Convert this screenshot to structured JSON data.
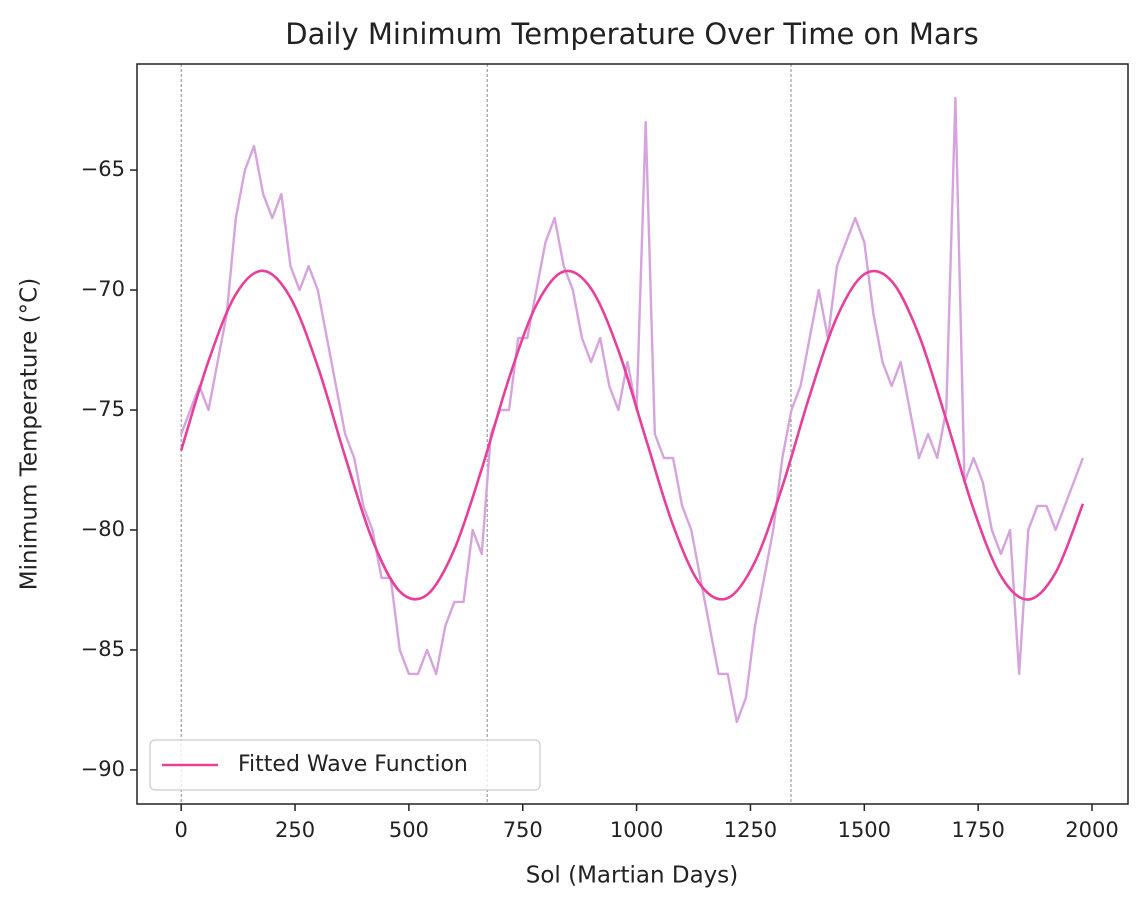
{
  "chart_data": {
    "type": "line",
    "title": "Daily Minimum Temperature Over Time on Mars",
    "xlabel": "Sol (Martian Days)",
    "ylabel": "Minimum Temperature (°C)",
    "xlim": [
      -97,
      2079
    ],
    "ylim": [
      -91.42,
      -60.58
    ],
    "xticks": [
      0,
      250,
      500,
      750,
      1000,
      1250,
      1500,
      1750,
      2000
    ],
    "yticks": [
      {
        "value": -65,
        "label": "−65"
      },
      {
        "value": -70,
        "label": "−70"
      },
      {
        "value": -75,
        "label": "−75"
      },
      {
        "value": -80,
        "label": "−80"
      },
      {
        "value": -85,
        "label": "−85"
      },
      {
        "value": -90,
        "label": "−90"
      }
    ],
    "vlines": [
      0,
      672,
      1339
    ],
    "legend": "lower left",
    "series": [
      {
        "color": "#d6a4dc",
        "x": [
          0,
          20,
          40,
          60,
          80,
          100,
          120,
          140,
          160,
          180,
          200,
          220,
          240,
          260,
          280,
          300,
          320,
          340,
          360,
          380,
          400,
          420,
          440,
          460,
          480,
          500,
          520,
          540,
          560,
          580,
          600,
          620,
          640,
          660,
          680,
          700,
          720,
          740,
          760,
          780,
          800,
          820,
          840,
          860,
          880,
          900,
          920,
          940,
          960,
          980,
          1000,
          1020,
          1040,
          1060,
          1080,
          1100,
          1120,
          1140,
          1160,
          1180,
          1200,
          1220,
          1240,
          1260,
          1280,
          1300,
          1320,
          1340,
          1360,
          1380,
          1400,
          1420,
          1440,
          1460,
          1480,
          1500,
          1520,
          1540,
          1560,
          1580,
          1600,
          1620,
          1640,
          1660,
          1680,
          1700,
          1720,
          1740,
          1760,
          1780,
          1800,
          1820,
          1840,
          1860,
          1880,
          1900,
          1920,
          1940,
          1960,
          1980
        ],
        "values": [
          -76,
          -75,
          -74,
          -75,
          -73,
          -71,
          -67,
          -65,
          -64,
          -66,
          -67,
          -66,
          -69,
          -70,
          -69,
          -70,
          -72,
          -74,
          -76,
          -77,
          -79,
          -80,
          -82,
          -82,
          -85,
          -86,
          -86,
          -85,
          -86,
          -84,
          -83,
          -83,
          -80,
          -81,
          -76,
          -75,
          -75,
          -72,
          -72,
          -70,
          -68,
          -67,
          -69,
          -70,
          -72,
          -73,
          -72,
          -74,
          -75,
          -73,
          -75,
          -63,
          -76,
          -77,
          -77,
          -79,
          -80,
          -82,
          -84,
          -86,
          -86,
          -88,
          -87,
          -84,
          -82,
          -80,
          -77,
          -75,
          -74,
          -72,
          -70,
          -72,
          -69,
          -68,
          -67,
          -68,
          -71,
          -73,
          -74,
          -73,
          -75,
          -77,
          -76,
          -77,
          -75,
          -62,
          -78,
          -77,
          -78,
          -80,
          -81,
          -80,
          -86,
          -80,
          -79,
          -79,
          -80,
          -79,
          -78,
          -77
        ]
      },
      {
        "name": "Fitted Wave Function",
        "color": "#e8409a",
        "x": [
          0,
          60,
          120,
          180,
          240,
          300,
          360,
          420,
          480,
          540,
          600,
          660,
          720,
          780,
          840,
          900,
          960,
          1020,
          1080,
          1140,
          1200,
          1260,
          1320,
          1380,
          1440,
          1500,
          1560,
          1620,
          1680,
          1740,
          1800,
          1860,
          1920,
          1980
        ],
        "values": [
          -76.69,
          -72.96,
          -70.18,
          -69.2,
          -70.32,
          -73.19,
          -76.94,
          -80.42,
          -82.56,
          -82.7,
          -80.8,
          -77.45,
          -73.67,
          -70.62,
          -69.23,
          -69.94,
          -72.51,
          -76.18,
          -79.8,
          -82.28,
          -82.84,
          -81.32,
          -78.19,
          -74.4,
          -71.12,
          -69.34,
          -69.63,
          -71.88,
          -75.41,
          -79.14,
          -81.92,
          -82.9,
          -81.78,
          -78.91
        ]
      }
    ]
  }
}
